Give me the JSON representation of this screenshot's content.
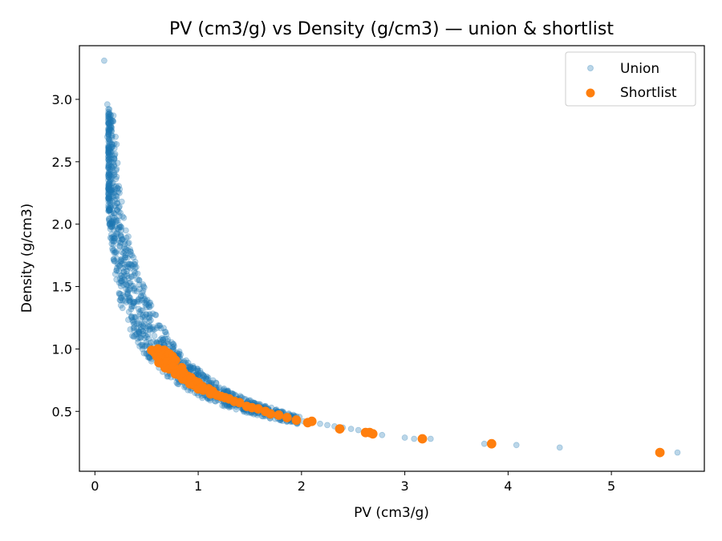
{
  "chart_data": {
    "type": "scatter",
    "title": "PV (cm3/g) vs Density (g/cm3) — union & shortlist",
    "xlabel": "PV (cm3/g)",
    "ylabel": "Density (g/cm3)",
    "xlim": [
      -0.15,
      5.9
    ],
    "ylim": [
      0.02,
      3.43
    ],
    "x_ticks": [
      0,
      1,
      2,
      3,
      4,
      5
    ],
    "y_ticks": [
      0.5,
      1.0,
      1.5,
      2.0,
      2.5,
      3.0
    ],
    "x_tick_labels": [
      "0",
      "1",
      "2",
      "3",
      "4",
      "5"
    ],
    "y_tick_labels": [
      "0.5",
      "1.0",
      "1.5",
      "2.0",
      "2.5",
      "3.0"
    ],
    "grid": false,
    "legend_position": "top-right",
    "series": [
      {
        "name": "Union",
        "color": "#1f77b4",
        "alpha": 0.3,
        "points": [
          [
            0.09,
            3.31
          ],
          [
            0.12,
            2.96
          ],
          [
            0.14,
            2.92
          ],
          [
            0.13,
            2.84
          ],
          [
            0.18,
            2.87
          ],
          [
            0.14,
            2.78
          ],
          [
            0.16,
            2.75
          ],
          [
            0.12,
            2.7
          ],
          [
            0.2,
            2.7
          ],
          [
            0.14,
            2.65
          ],
          [
            0.17,
            2.62
          ],
          [
            0.21,
            2.64
          ],
          [
            0.15,
            2.58
          ],
          [
            0.19,
            2.55
          ],
          [
            0.14,
            2.5
          ],
          [
            0.22,
            2.49
          ],
          [
            0.17,
            2.45
          ],
          [
            0.16,
            2.4
          ],
          [
            0.21,
            2.38
          ],
          [
            0.15,
            2.35
          ],
          [
            0.19,
            2.3
          ],
          [
            0.24,
            2.28
          ],
          [
            0.17,
            2.25
          ],
          [
            0.21,
            2.2
          ],
          [
            0.26,
            2.18
          ],
          [
            0.19,
            2.15
          ],
          [
            0.23,
            2.1
          ],
          [
            0.28,
            2.05
          ],
          [
            0.2,
            2.02
          ],
          [
            0.25,
            1.98
          ],
          [
            0.3,
            1.95
          ],
          [
            0.15,
            1.89
          ],
          [
            0.22,
            1.92
          ],
          [
            0.27,
            1.88
          ],
          [
            0.33,
            1.85
          ],
          [
            0.24,
            1.82
          ],
          [
            0.29,
            1.78
          ],
          [
            0.36,
            1.75
          ],
          [
            0.26,
            1.72
          ],
          [
            0.32,
            1.68
          ],
          [
            0.39,
            1.65
          ],
          [
            0.28,
            1.62
          ],
          [
            0.35,
            1.58
          ],
          [
            0.43,
            1.55
          ],
          [
            0.3,
            1.52
          ],
          [
            0.38,
            1.48
          ],
          [
            0.46,
            1.45
          ],
          [
            0.33,
            1.42
          ],
          [
            0.41,
            1.38
          ],
          [
            0.49,
            1.35
          ],
          [
            0.35,
            1.32
          ],
          [
            0.44,
            1.28
          ],
          [
            0.52,
            1.25
          ],
          [
            0.38,
            1.22
          ],
          [
            0.47,
            1.18
          ],
          [
            0.56,
            1.15
          ],
          [
            0.43,
            1.12
          ],
          [
            0.52,
            1.08
          ],
          [
            0.6,
            1.05
          ],
          [
            0.48,
            1.02
          ],
          [
            0.58,
            0.98
          ],
          [
            0.67,
            0.95
          ],
          [
            0.55,
            0.92
          ],
          [
            0.65,
            0.9
          ],
          [
            0.77,
            0.87
          ],
          [
            0.62,
            0.85
          ],
          [
            0.74,
            0.82
          ],
          [
            0.87,
            0.8
          ],
          [
            0.7,
            0.78
          ],
          [
            0.83,
            0.76
          ],
          [
            0.97,
            0.74
          ],
          [
            0.8,
            0.72
          ],
          [
            0.93,
            0.7
          ],
          [
            1.08,
            0.68
          ],
          [
            0.9,
            0.67
          ],
          [
            1.05,
            0.65
          ],
          [
            1.2,
            0.63
          ],
          [
            1.0,
            0.63
          ],
          [
            1.15,
            0.61
          ],
          [
            1.3,
            0.6
          ],
          [
            1.25,
            0.58
          ],
          [
            1.4,
            0.57
          ],
          [
            1.35,
            0.55
          ],
          [
            1.52,
            0.54
          ],
          [
            1.45,
            0.52
          ],
          [
            1.62,
            0.51
          ],
          [
            1.58,
            0.49
          ],
          [
            1.75,
            0.48
          ],
          [
            1.7,
            0.47
          ],
          [
            1.85,
            0.46
          ],
          [
            1.8,
            0.44
          ],
          [
            1.95,
            0.43
          ],
          [
            2.02,
            0.42
          ],
          [
            2.1,
            0.41
          ],
          [
            2.18,
            0.4
          ],
          [
            2.25,
            0.39
          ],
          [
            2.32,
            0.38
          ],
          [
            2.4,
            0.37
          ],
          [
            2.48,
            0.36
          ],
          [
            2.55,
            0.35
          ],
          [
            2.62,
            0.34
          ],
          [
            2.7,
            0.33
          ],
          [
            2.78,
            0.31
          ],
          [
            3.0,
            0.29
          ],
          [
            3.09,
            0.28
          ],
          [
            3.25,
            0.28
          ],
          [
            3.77,
            0.24
          ],
          [
            4.08,
            0.23
          ],
          [
            4.5,
            0.21
          ],
          [
            5.64,
            0.17
          ]
        ]
      },
      {
        "name": "Shortlist",
        "color": "#ff7f0e",
        "alpha": 1.0,
        "points": [
          [
            0.55,
            0.99
          ],
          [
            0.58,
            0.97
          ],
          [
            0.61,
            1.0
          ],
          [
            0.64,
            0.98
          ],
          [
            0.67,
            0.99
          ],
          [
            0.7,
            0.97
          ],
          [
            0.6,
            0.94
          ],
          [
            0.63,
            0.92
          ],
          [
            0.66,
            0.95
          ],
          [
            0.69,
            0.93
          ],
          [
            0.72,
            0.96
          ],
          [
            0.75,
            0.94
          ],
          [
            0.62,
            0.89
          ],
          [
            0.66,
            0.88
          ],
          [
            0.7,
            0.9
          ],
          [
            0.74,
            0.88
          ],
          [
            0.78,
            0.91
          ],
          [
            0.68,
            0.85
          ],
          [
            0.72,
            0.84
          ],
          [
            0.76,
            0.86
          ],
          [
            0.8,
            0.83
          ],
          [
            0.84,
            0.85
          ],
          [
            0.78,
            0.8
          ],
          [
            0.82,
            0.79
          ],
          [
            0.86,
            0.81
          ],
          [
            0.9,
            0.78
          ],
          [
            0.85,
            0.76
          ],
          [
            0.89,
            0.75
          ],
          [
            0.93,
            0.77
          ],
          [
            0.97,
            0.74
          ],
          [
            0.92,
            0.72
          ],
          [
            0.96,
            0.71
          ],
          [
            1.0,
            0.73
          ],
          [
            1.04,
            0.7
          ],
          [
            1.0,
            0.68
          ],
          [
            1.05,
            0.67
          ],
          [
            1.1,
            0.68
          ],
          [
            1.14,
            0.66
          ],
          [
            1.12,
            0.64
          ],
          [
            1.18,
            0.63
          ],
          [
            1.22,
            0.62
          ],
          [
            1.26,
            0.61
          ],
          [
            1.3,
            0.6
          ],
          [
            1.35,
            0.58
          ],
          [
            1.4,
            0.57
          ],
          [
            1.47,
            0.54
          ],
          [
            1.52,
            0.53
          ],
          [
            1.58,
            0.52
          ],
          [
            1.65,
            0.5
          ],
          [
            1.7,
            0.48
          ],
          [
            1.78,
            0.47
          ],
          [
            1.86,
            0.45
          ],
          [
            1.95,
            0.43
          ],
          [
            2.06,
            0.41
          ],
          [
            2.1,
            0.42
          ],
          [
            2.37,
            0.36
          ],
          [
            2.62,
            0.33
          ],
          [
            2.66,
            0.33
          ],
          [
            2.69,
            0.32
          ],
          [
            3.17,
            0.28
          ],
          [
            3.84,
            0.24
          ],
          [
            5.47,
            0.17
          ]
        ]
      }
    ],
    "union_envelope": {
      "upper": [
        [
          0.14,
          2.95
        ],
        [
          0.18,
          2.85
        ],
        [
          0.2,
          2.55
        ],
        [
          0.22,
          2.4
        ],
        [
          0.25,
          2.2
        ],
        [
          0.3,
          2.0
        ],
        [
          0.36,
          1.8
        ],
        [
          0.42,
          1.62
        ],
        [
          0.5,
          1.45
        ],
        [
          0.6,
          1.28
        ],
        [
          0.7,
          1.12
        ],
        [
          0.82,
          0.98
        ],
        [
          0.95,
          0.87
        ],
        [
          1.1,
          0.78
        ],
        [
          1.3,
          0.66
        ],
        [
          1.6,
          0.56
        ],
        [
          2.0,
          0.45
        ]
      ],
      "lower": [
        [
          0.12,
          2.4
        ],
        [
          0.13,
          2.1
        ],
        [
          0.15,
          1.9
        ],
        [
          0.18,
          1.7
        ],
        [
          0.21,
          1.5
        ],
        [
          0.25,
          1.35
        ],
        [
          0.3,
          1.22
        ],
        [
          0.36,
          1.1
        ],
        [
          0.44,
          1.0
        ],
        [
          0.54,
          0.9
        ],
        [
          0.65,
          0.82
        ],
        [
          0.8,
          0.72
        ],
        [
          1.0,
          0.62
        ],
        [
          1.25,
          0.54
        ],
        [
          1.6,
          0.46
        ],
        [
          2.0,
          0.39
        ]
      ],
      "count": 1100
    }
  }
}
